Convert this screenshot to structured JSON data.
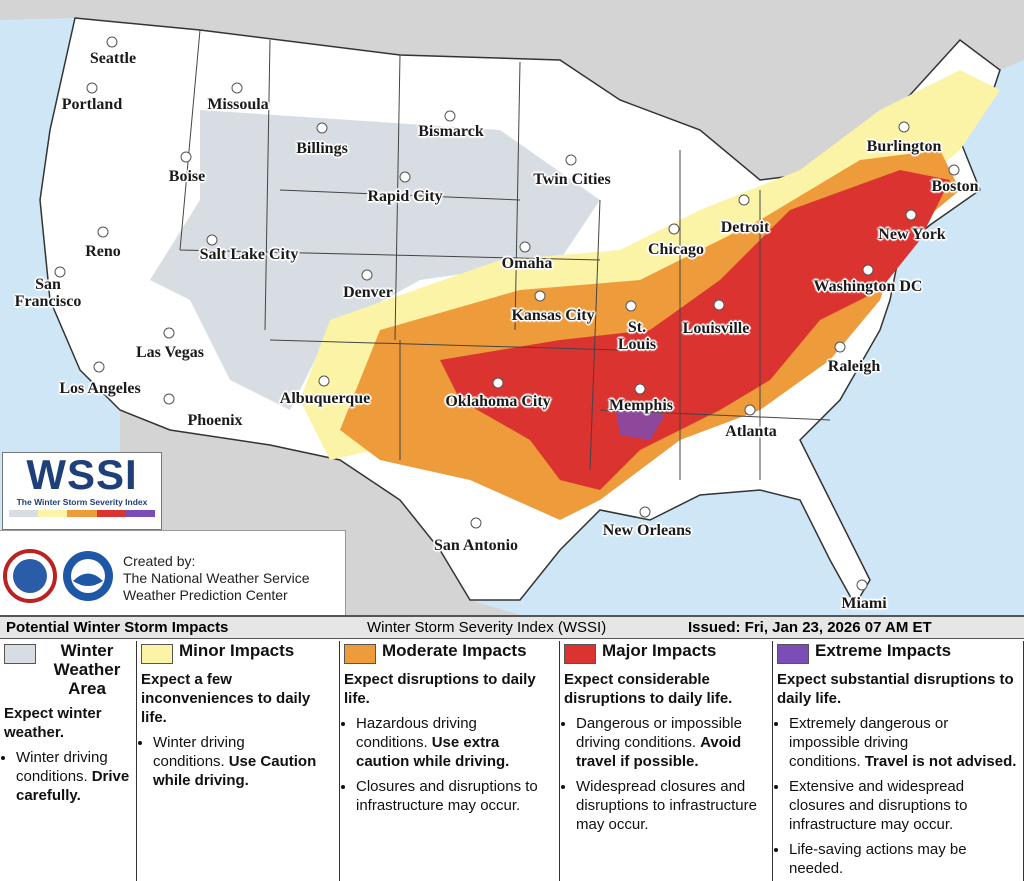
{
  "map": {
    "logo_title": "WSSI",
    "logo_subtitle": "The Winter Storm Severity Index",
    "credits": [
      "Created by:",
      "The National Weather Service",
      "Weather Prediction Center"
    ],
    "cities": [
      "Seattle",
      "Portland",
      "Missoula",
      "Bismarck",
      "Billings",
      "Boise",
      "Twin Cities",
      "Burlington",
      "Boston",
      "Rapid City",
      "Detroit",
      "New York",
      "Reno",
      "Salt Lake City",
      "Chicago",
      "Omaha",
      "Denver",
      "San Francisco",
      "Washington DC",
      "Kansas City",
      "St. Louis",
      "Louisville",
      "Las Vegas",
      "Raleigh",
      "Albuquerque",
      "Oklahoma City",
      "Memphis",
      "Los Angeles",
      "Phoenix",
      "Atlanta",
      "San Antonio",
      "New Orleans",
      "Miami"
    ]
  },
  "legend": {
    "header": {
      "title": "Potential Winter Storm Impacts",
      "index_name": "Winter Storm Severity Index (WSSI)",
      "issued": "Issued: Fri, Jan 23, 2026 07 AM ET"
    },
    "categories": [
      {
        "name": "Winter Weather Area",
        "color": "#d8dde3",
        "summary": "Expect winter weather.",
        "bullets": [
          {
            "text": "Winter driving conditions.",
            "emphasis": "Drive carefully."
          }
        ]
      },
      {
        "name": "Minor Impacts",
        "color": "#fbf4a6",
        "summary": "Expect a few inconveniences to daily life.",
        "bullets": [
          {
            "text": "Winter driving conditions.",
            "emphasis": "Use Caution while driving."
          }
        ]
      },
      {
        "name": "Moderate Impacts",
        "color": "#ee9b3b",
        "summary": "Expect disruptions to daily life.",
        "bullets": [
          {
            "text": "Hazardous driving conditions.",
            "emphasis": "Use extra caution while driving."
          },
          {
            "text": "Closures and disruptions to infrastructure may occur."
          }
        ]
      },
      {
        "name": "Major Impacts",
        "color": "#db3330",
        "summary": "Expect considerable disruptions to daily life.",
        "bullets": [
          {
            "text": "Dangerous or impossible driving conditions.",
            "emphasis": "Avoid travel if possible."
          },
          {
            "text": "Widespread closures and disruptions to infrastructure may occur."
          }
        ]
      },
      {
        "name": "Extreme Impacts",
        "color": "#7b4db6",
        "summary": "Expect substantial disruptions to daily life.",
        "bullets": [
          {
            "text": "Extremely dangerous or impossible driving conditions.",
            "emphasis": "Travel is not advised."
          },
          {
            "text": "Extensive and widespread closures and disruptions to infrastructure may occur."
          },
          {
            "text": "Life-saving actions may be needed."
          }
        ]
      }
    ]
  }
}
